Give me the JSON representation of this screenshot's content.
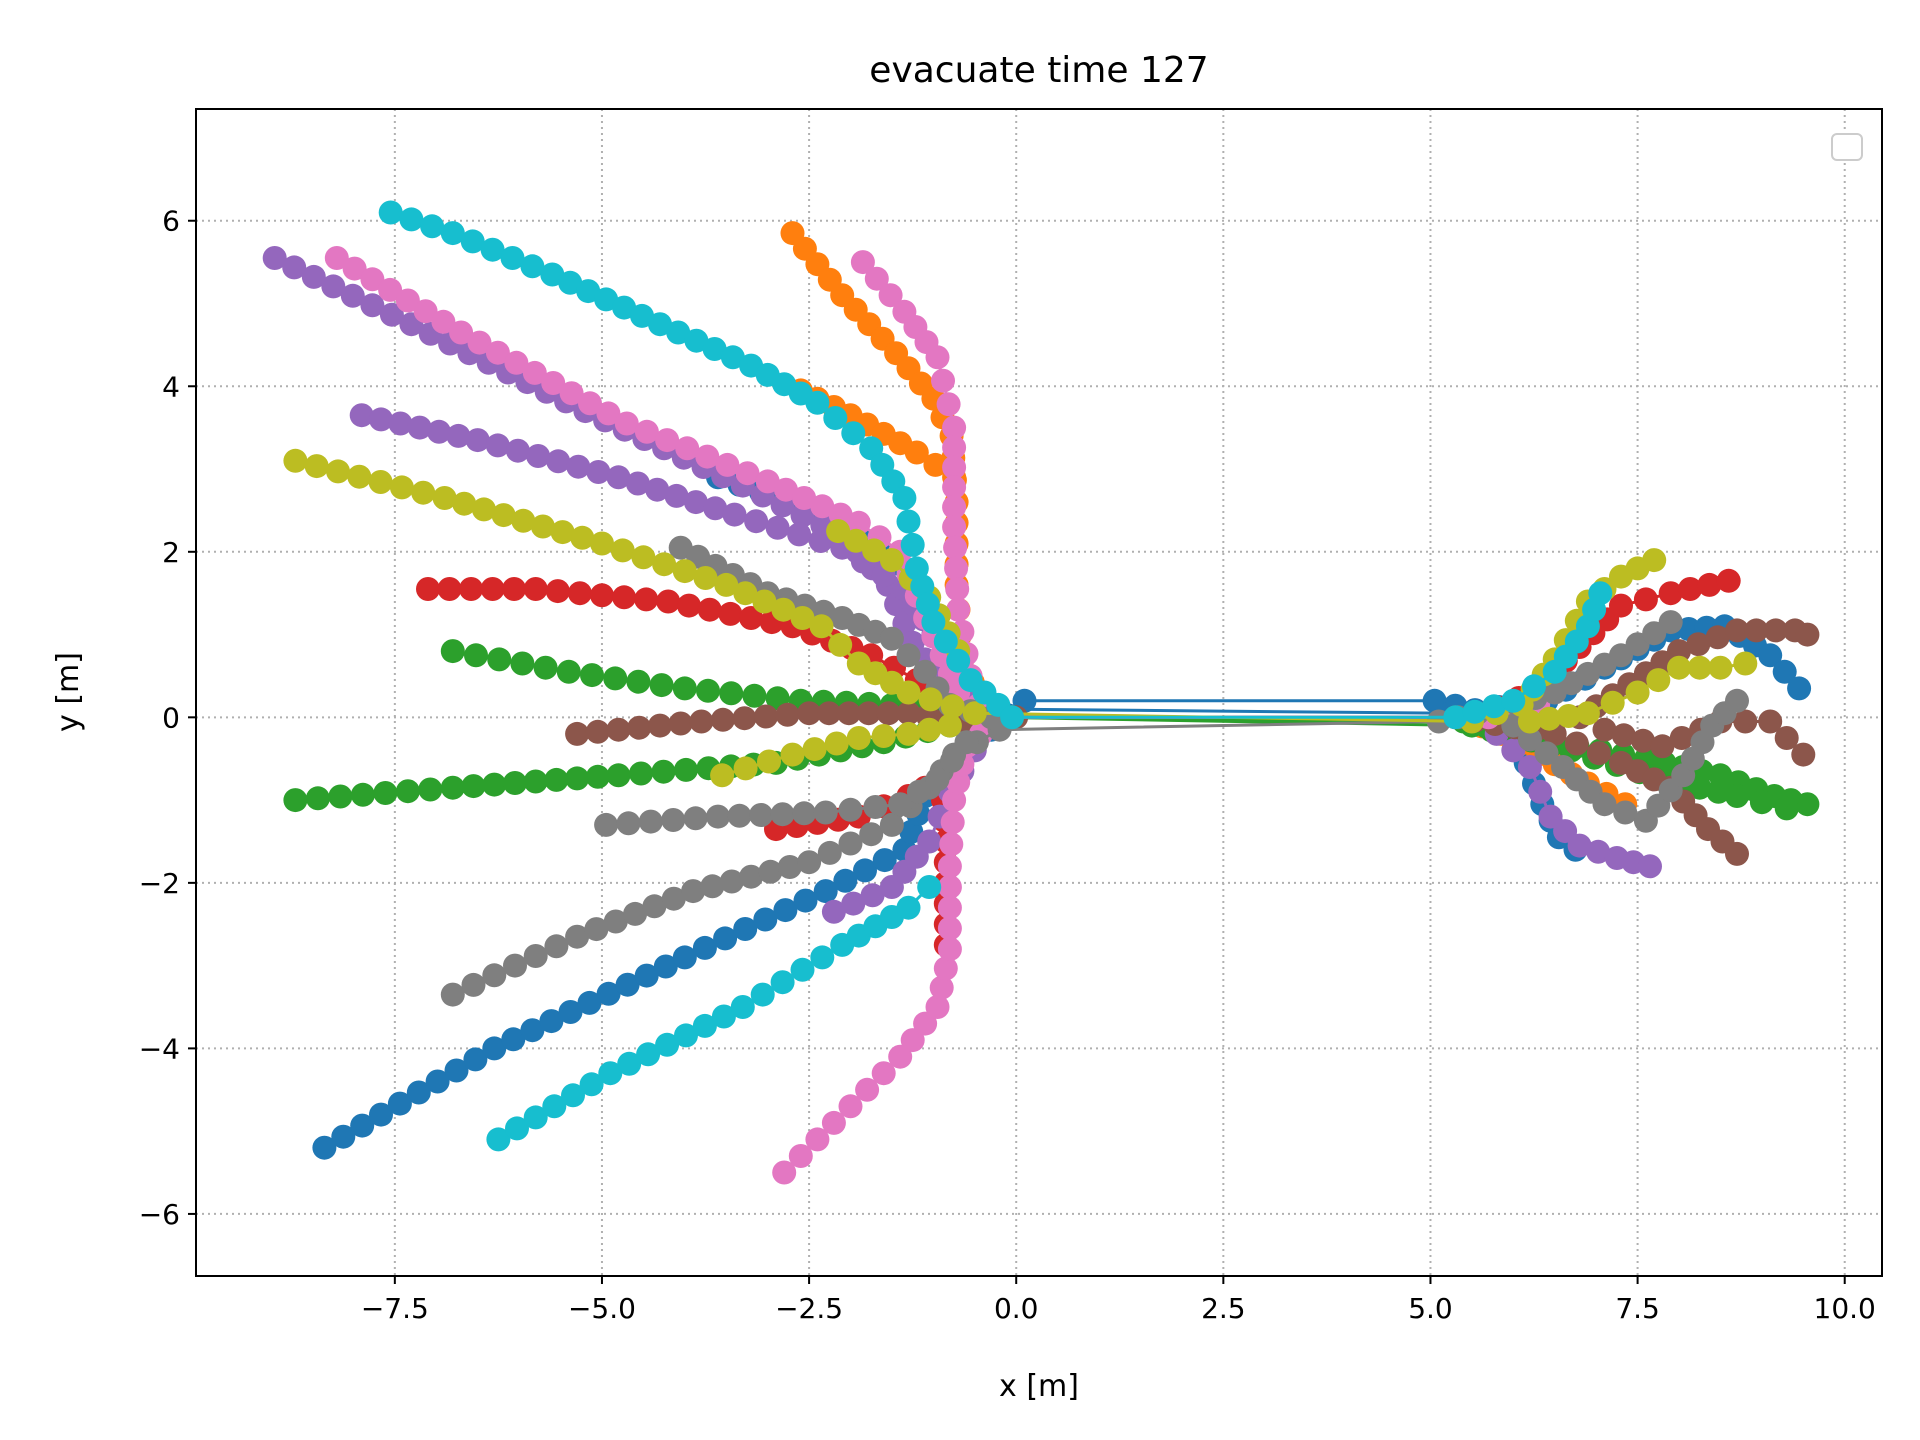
{
  "chart_data": {
    "type": "scatter",
    "title": "evacuate time 127",
    "xlabel": "x [m]",
    "ylabel": "y [m]",
    "xlim": [
      -9.9,
      10.45
    ],
    "ylim": [
      -6.75,
      7.35
    ],
    "xticks": [
      -7.5,
      -5.0,
      -2.5,
      0.0,
      2.5,
      5.0,
      7.5,
      10.0
    ],
    "xtick_labels": [
      "−7.5",
      "−5.0",
      "−2.5",
      "0.0",
      "2.5",
      "5.0",
      "7.5",
      "10.0"
    ],
    "yticks": [
      -6,
      -4,
      -2,
      0,
      2,
      4,
      6
    ],
    "ytick_labels": [
      "−6",
      "−4",
      "−2",
      "0",
      "2",
      "4",
      "6"
    ],
    "grid": true,
    "legend": "upper right (empty)",
    "line_style": "solid line with large circle markers",
    "colors": [
      "#1f77b4",
      "#ff7f0e",
      "#2ca02c",
      "#d62728",
      "#9467bd",
      "#8c564b",
      "#e377c2",
      "#7f7f7f",
      "#bcbd22",
      "#17becf"
    ],
    "series": [
      {
        "color": "#1f77b4",
        "waypoints": [
          [
            -8.35,
            -5.2
          ],
          [
            -6.3,
            -4.0
          ],
          [
            -4.0,
            -2.9
          ],
          [
            -2.3,
            -2.1
          ],
          [
            -1.35,
            -1.6
          ],
          [
            -1.1,
            -0.95
          ],
          [
            -0.7,
            -0.45
          ],
          [
            -0.3,
            -0.15
          ],
          [
            0.1,
            0.2
          ],
          [
            5.05,
            0.2
          ],
          [
            5.55,
            0.08
          ],
          [
            5.9,
            -0.15
          ],
          [
            6.15,
            -0.55
          ],
          [
            6.35,
            -1.05
          ],
          [
            6.55,
            -1.45
          ],
          [
            6.75,
            -1.6
          ]
        ]
      },
      {
        "color": "#1f77b4",
        "waypoints": [
          [
            -3.6,
            2.9
          ],
          [
            -2.3,
            2.45
          ],
          [
            -1.4,
            1.85
          ],
          [
            -0.95,
            1.05
          ],
          [
            -0.65,
            0.4
          ],
          [
            -0.25,
            0.1
          ],
          [
            5.25,
            0.05
          ],
          [
            6.4,
            0.2
          ],
          [
            7.1,
            0.6
          ],
          [
            7.9,
            1.05
          ],
          [
            8.55,
            1.1
          ],
          [
            9.1,
            0.75
          ],
          [
            9.45,
            0.35
          ]
        ]
      },
      {
        "color": "#ff7f0e",
        "waypoints": [
          [
            -2.7,
            5.85
          ],
          [
            -2.1,
            5.1
          ],
          [
            -1.45,
            4.4
          ],
          [
            -1.0,
            3.85
          ],
          [
            -0.78,
            3.4
          ],
          [
            -0.72,
            2.6
          ],
          [
            -0.72,
            1.6
          ],
          [
            -0.65,
            0.7
          ],
          [
            -0.4,
            0.15
          ],
          [
            -0.05,
            0.0
          ],
          [
            5.4,
            -0.02
          ],
          [
            5.85,
            -0.2
          ],
          [
            6.3,
            -0.45
          ],
          [
            6.9,
            -0.8
          ],
          [
            7.35,
            -1.05
          ]
        ]
      },
      {
        "color": "#ff7f0e",
        "waypoints": [
          [
            -2.6,
            3.95
          ],
          [
            -2.0,
            3.65
          ],
          [
            -1.2,
            3.2
          ],
          [
            -0.75,
            2.9
          ]
        ]
      },
      {
        "color": "#2ca02c",
        "waypoints": [
          [
            -6.8,
            0.8
          ],
          [
            -5.4,
            0.55
          ],
          [
            -4.0,
            0.35
          ],
          [
            -2.6,
            0.2
          ],
          [
            -1.5,
            0.15
          ],
          [
            -0.8,
            0.05
          ],
          [
            -0.2,
            0.0
          ],
          [
            5.4,
            -0.05
          ],
          [
            6.5,
            -0.3
          ],
          [
            7.6,
            -0.5
          ],
          [
            8.5,
            -0.7
          ],
          [
            9.15,
            -0.95
          ],
          [
            9.55,
            -1.05
          ]
        ]
      },
      {
        "color": "#2ca02c",
        "waypoints": [
          [
            -8.7,
            -1.0
          ],
          [
            -6.8,
            -0.85
          ],
          [
            -4.8,
            -0.7
          ],
          [
            -2.9,
            -0.55
          ],
          [
            -1.6,
            -0.3
          ],
          [
            -0.8,
            -0.1
          ],
          [
            -0.2,
            0.0
          ],
          [
            5.5,
            -0.1
          ],
          [
            6.7,
            -0.4
          ],
          [
            7.8,
            -0.75
          ],
          [
            8.7,
            -0.95
          ],
          [
            9.3,
            -1.1
          ]
        ]
      },
      {
        "color": "#d62728",
        "waypoints": [
          [
            -7.1,
            1.55
          ],
          [
            -5.8,
            1.55
          ],
          [
            -4.2,
            1.4
          ],
          [
            -2.7,
            1.1
          ],
          [
            -1.75,
            0.75
          ],
          [
            -1.2,
            0.45
          ],
          [
            -0.65,
            0.1
          ],
          [
            -0.2,
            0.0
          ],
          [
            5.6,
            0.0
          ],
          [
            6.3,
            0.35
          ],
          [
            6.8,
            0.85
          ],
          [
            7.3,
            1.35
          ],
          [
            7.9,
            1.5
          ],
          [
            8.6,
            1.65
          ]
        ]
      },
      {
        "color": "#d62728",
        "waypoints": [
          [
            -2.9,
            -1.35
          ],
          [
            -1.9,
            -1.2
          ],
          [
            -1.3,
            -0.95
          ],
          [
            -0.9,
            -0.75
          ],
          [
            -0.85,
            -1.5
          ],
          [
            -0.85,
            -2.75
          ]
        ]
      },
      {
        "color": "#9467bd",
        "waypoints": [
          [
            -8.95,
            5.55
          ],
          [
            -7.3,
            4.75
          ],
          [
            -5.2,
            3.7
          ],
          [
            -3.3,
            2.8
          ],
          [
            -2.1,
            2.2
          ],
          [
            -1.55,
            1.6
          ],
          [
            -1.25,
            0.9
          ],
          [
            -0.8,
            0.3
          ],
          [
            -0.15,
            0.0
          ],
          [
            5.6,
            0.0
          ],
          [
            6.2,
            -0.6
          ],
          [
            6.45,
            -1.2
          ],
          [
            6.8,
            -1.55
          ],
          [
            7.25,
            -1.7
          ],
          [
            7.65,
            -1.8
          ]
        ]
      },
      {
        "color": "#9467bd",
        "waypoints": [
          [
            -7.9,
            3.65
          ],
          [
            -6.5,
            3.35
          ],
          [
            -4.8,
            2.9
          ],
          [
            -3.4,
            2.45
          ],
          [
            -2.1,
            2.05
          ],
          [
            -1.35,
            1.55
          ],
          [
            -1.0,
            1.0
          ]
        ]
      },
      {
        "color": "#9467bd",
        "waypoints": [
          [
            -2.2,
            -2.35
          ],
          [
            -1.5,
            -2.05
          ],
          [
            -1.05,
            -1.5
          ],
          [
            -0.8,
            -0.9
          ],
          [
            -0.5,
            -0.4
          ]
        ]
      },
      {
        "color": "#8c564b",
        "waypoints": [
          [
            -5.3,
            -0.2
          ],
          [
            -3.8,
            -0.05
          ],
          [
            -2.5,
            0.05
          ],
          [
            -1.3,
            0.05
          ],
          [
            -0.6,
            -0.05
          ],
          [
            0.0,
            0.0
          ],
          [
            5.3,
            0.0
          ],
          [
            6.5,
            -0.2
          ],
          [
            7.3,
            -0.55
          ],
          [
            7.9,
            -0.85
          ],
          [
            8.35,
            -1.35
          ],
          [
            8.7,
            -1.65
          ]
        ]
      },
      {
        "color": "#8c564b",
        "waypoints": [
          [
            6.8,
            0.0
          ],
          [
            7.4,
            0.4
          ],
          [
            8.0,
            0.8
          ],
          [
            8.7,
            1.05
          ],
          [
            9.4,
            1.05
          ],
          [
            9.55,
            1.0
          ]
        ]
      },
      {
        "color": "#8c564b",
        "waypoints": [
          [
            7.1,
            -0.15
          ],
          [
            7.8,
            -0.35
          ],
          [
            8.5,
            -0.05
          ],
          [
            9.1,
            -0.05
          ],
          [
            9.5,
            -0.45
          ]
        ]
      },
      {
        "color": "#e377c2",
        "waypoints": [
          [
            -8.2,
            5.55
          ],
          [
            -6.7,
            4.65
          ],
          [
            -4.7,
            3.55
          ],
          [
            -3.0,
            2.85
          ],
          [
            -1.9,
            2.35
          ],
          [
            -1.4,
            2.0
          ],
          [
            -1.1,
            1.2
          ],
          [
            -0.7,
            0.3
          ],
          [
            -0.2,
            0.0
          ],
          [
            5.7,
            0.0
          ],
          [
            6.3,
            0.15
          ]
        ]
      },
      {
        "color": "#e377c2",
        "waypoints": [
          [
            -1.85,
            5.5
          ],
          [
            -1.35,
            4.9
          ],
          [
            -0.95,
            4.35
          ],
          [
            -0.75,
            3.5
          ],
          [
            -0.75,
            2.3
          ],
          [
            -0.7,
            1.3
          ],
          [
            -0.55,
            0.5
          ]
        ]
      },
      {
        "color": "#e377c2",
        "waypoints": [
          [
            -2.8,
            -5.5
          ],
          [
            -2.2,
            -4.9
          ],
          [
            -1.4,
            -4.1
          ],
          [
            -0.95,
            -3.5
          ],
          [
            -0.8,
            -2.8
          ],
          [
            -0.8,
            -1.8
          ],
          [
            -0.75,
            -1.0
          ],
          [
            -0.6,
            -0.35
          ],
          [
            -0.25,
            -0.05
          ]
        ]
      },
      {
        "color": "#7f7f7f",
        "waypoints": [
          [
            -6.8,
            -3.35
          ],
          [
            -5.3,
            -2.65
          ],
          [
            -3.9,
            -2.1
          ],
          [
            -2.5,
            -1.75
          ],
          [
            -1.5,
            -1.3
          ],
          [
            -1.05,
            -0.85
          ],
          [
            -0.75,
            -0.45
          ],
          [
            -0.2,
            -0.15
          ],
          [
            5.1,
            -0.05
          ],
          [
            5.8,
            0.1
          ],
          [
            6.5,
            0.3
          ],
          [
            7.3,
            0.75
          ],
          [
            7.9,
            1.15
          ]
        ]
      },
      {
        "color": "#7f7f7f",
        "waypoints": [
          [
            -4.05,
            2.05
          ],
          [
            -3.0,
            1.5
          ],
          [
            -2.1,
            1.2
          ],
          [
            -1.5,
            0.95
          ],
          [
            -1.1,
            0.55
          ],
          [
            -0.8,
            0.15
          ],
          [
            -0.3,
            0.0
          ]
        ]
      },
      {
        "color": "#7f7f7f",
        "waypoints": [
          [
            -4.95,
            -1.3
          ],
          [
            -3.6,
            -1.2
          ],
          [
            -2.3,
            -1.15
          ],
          [
            -1.4,
            -1.05
          ],
          [
            -0.95,
            -0.75
          ],
          [
            -0.6,
            -0.3
          ]
        ]
      },
      {
        "color": "#7f7f7f",
        "waypoints": [
          [
            6.0,
            -0.1
          ],
          [
            6.6,
            -0.6
          ],
          [
            7.1,
            -1.05
          ],
          [
            7.6,
            -1.25
          ],
          [
            8.05,
            -0.7
          ],
          [
            8.4,
            -0.1
          ],
          [
            8.7,
            0.2
          ]
        ]
      },
      {
        "color": "#bcbd22",
        "waypoints": [
          [
            -8.7,
            3.1
          ],
          [
            -6.9,
            2.65
          ],
          [
            -5.0,
            2.1
          ],
          [
            -3.5,
            1.6
          ],
          [
            -2.35,
            1.1
          ],
          [
            -1.9,
            0.65
          ],
          [
            -1.3,
            0.3
          ],
          [
            -0.5,
            0.05
          ],
          [
            5.5,
            -0.05
          ],
          [
            6.1,
            0.15
          ],
          [
            6.5,
            0.7
          ],
          [
            6.9,
            1.4
          ],
          [
            7.3,
            1.7
          ],
          [
            7.7,
            1.9
          ]
        ]
      },
      {
        "color": "#bcbd22",
        "waypoints": [
          [
            -3.55,
            -0.7
          ],
          [
            -2.7,
            -0.45
          ],
          [
            -1.9,
            -0.25
          ],
          [
            -1.3,
            -0.2
          ],
          [
            -0.8,
            -0.1
          ]
        ]
      },
      {
        "color": "#bcbd22",
        "waypoints": [
          [
            -2.15,
            2.25
          ],
          [
            -1.5,
            1.9
          ],
          [
            -1.05,
            1.45
          ],
          [
            -0.7,
            0.8
          ]
        ]
      },
      {
        "color": "#bcbd22",
        "waypoints": [
          [
            6.2,
            -0.05
          ],
          [
            6.9,
            0.05
          ],
          [
            7.5,
            0.3
          ],
          [
            8.0,
            0.6
          ],
          [
            8.5,
            0.6
          ],
          [
            8.8,
            0.65
          ]
        ]
      },
      {
        "color": "#17becf",
        "waypoints": [
          [
            -7.55,
            6.1
          ],
          [
            -6.8,
            5.85
          ],
          [
            -5.6,
            5.35
          ],
          [
            -4.3,
            4.75
          ],
          [
            -3.2,
            4.25
          ],
          [
            -2.4,
            3.8
          ],
          [
            -1.75,
            3.25
          ],
          [
            -1.35,
            2.65
          ],
          [
            -1.2,
            1.8
          ],
          [
            -1.0,
            1.15
          ],
          [
            -0.55,
            0.45
          ],
          [
            -0.05,
            0.0
          ],
          [
            5.3,
            0.0
          ],
          [
            6.0,
            0.2
          ],
          [
            6.5,
            0.55
          ],
          [
            6.9,
            1.1
          ],
          [
            7.05,
            1.5
          ]
        ]
      },
      {
        "color": "#17becf",
        "waypoints": [
          [
            -6.25,
            -5.1
          ],
          [
            -4.9,
            -4.3
          ],
          [
            -3.3,
            -3.5
          ],
          [
            -2.1,
            -2.75
          ],
          [
            -1.3,
            -2.3
          ],
          [
            -1.05,
            -2.05
          ]
        ]
      }
    ]
  }
}
